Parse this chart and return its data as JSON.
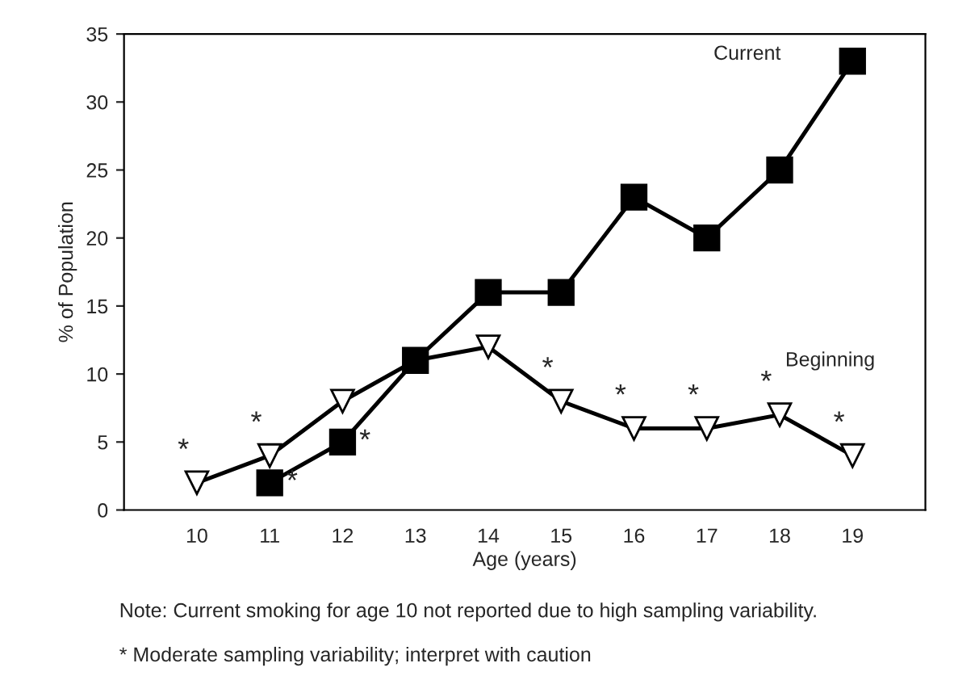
{
  "chart_data": {
    "type": "line",
    "xlabel": "Age (years)",
    "ylabel": "% of Population",
    "xlim": [
      9,
      20
    ],
    "xticks": [
      10,
      11,
      12,
      13,
      14,
      15,
      16,
      17,
      18,
      19
    ],
    "ylim": [
      0,
      35
    ],
    "yticks": [
      0,
      5,
      10,
      15,
      20,
      25,
      30,
      35
    ],
    "grid": false,
    "legend": false,
    "line_style": "solid",
    "series": [
      {
        "name": "Current",
        "color": "#000000",
        "marker": "square",
        "x": [
          11,
          12,
          13,
          14,
          15,
          16,
          17,
          18,
          19
        ],
        "values": [
          2,
          5,
          11,
          16,
          16,
          23,
          20,
          25,
          33
        ]
      },
      {
        "name": "Beginning",
        "color": "#000000",
        "marker": "triangle",
        "x": [
          10,
          11,
          12,
          13,
          14,
          15,
          16,
          17,
          18,
          19
        ],
        "values": [
          2,
          4,
          8,
          11,
          12,
          8,
          6,
          6,
          7,
          4
        ]
      }
    ],
    "annotations": [
      {
        "text": "*",
        "x": 10,
        "y": 2
      },
      {
        "text": "*",
        "x": 11,
        "y": 4
      },
      {
        "text": "*",
        "x": 11,
        "y": 2
      },
      {
        "text": "*",
        "x": 12,
        "y": 5
      },
      {
        "text": "*",
        "x": 15,
        "y": 8
      },
      {
        "text": "*",
        "x": 16,
        "y": 6
      },
      {
        "text": "*",
        "x": 17,
        "y": 6
      },
      {
        "text": "*",
        "x": 18,
        "y": 7
      },
      {
        "text": "*",
        "x": 19,
        "y": 4
      },
      "Note: Current smoking for age 10 not reported due to high sampling variability.",
      "* Moderate sampling variability; interpret with caution"
    ]
  }
}
